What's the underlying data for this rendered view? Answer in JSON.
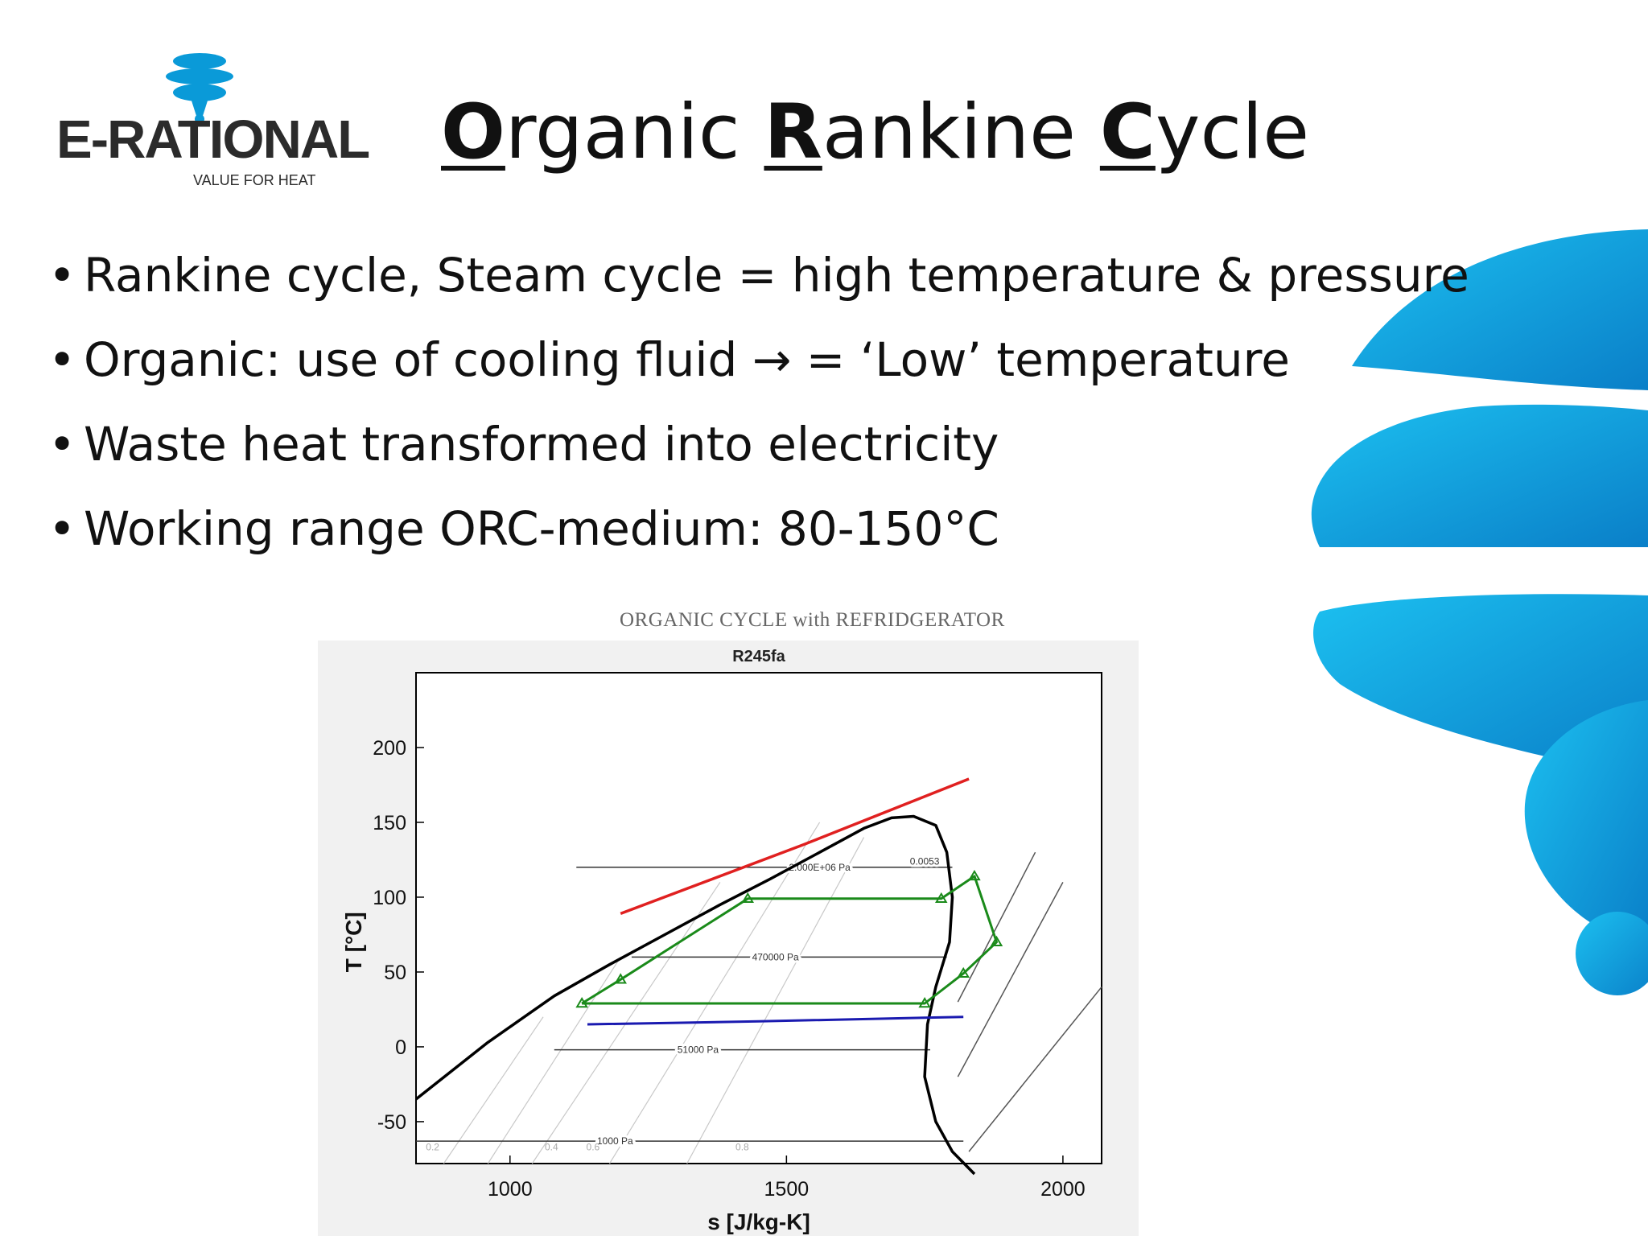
{
  "brand": {
    "name": "E-RATIONAL",
    "tagline": "VALUE FOR HEAT",
    "colors": {
      "primary": "#0a9ad8",
      "dark": "#2b2b2b"
    }
  },
  "title": {
    "word1_cap": "O",
    "word1_rest": "rganic ",
    "word2_cap": "R",
    "word2_rest": "ankine ",
    "word3_cap": "C",
    "word3_rest": "ycle"
  },
  "bullets": [
    {
      "text": "Rankine cycle, Steam cycle = high temperature & pressure"
    },
    {
      "text": "Organic: use of cooling fluid → = ‘Low’ temperature"
    },
    {
      "text": "Waste heat transformed into electricity"
    },
    {
      "text": "Working range ORC-medium: 80-150°C"
    }
  ],
  "figure_caption": "ORGANIC CYCLE  with  REFRIDGERATOR",
  "chart_data": {
    "type": "line",
    "title": "R245fa",
    "xlabel": "s [J/kg-K]",
    "ylabel": "T [°C]",
    "xlim": [
      830,
      2070
    ],
    "ylim": [
      -78,
      250
    ],
    "xticks": [
      1000,
      1500,
      2000
    ],
    "yticks": [
      -50,
      0,
      50,
      100,
      150,
      200
    ],
    "grid": false,
    "isobar_labels": [
      {
        "text": "2.000E+06 Pa",
        "x": 1560,
        "y": 120
      },
      {
        "text": "0.0053",
        "x": 1750,
        "y": 124
      },
      {
        "text": "470000 Pa",
        "x": 1480,
        "y": 60
      },
      {
        "text": "51000 Pa",
        "x": 1340,
        "y": -2
      },
      {
        "text": "1000 Pa",
        "x": 1190,
        "y": -63
      }
    ],
    "quality_labels": [
      {
        "text": "0.2",
        "x": 860,
        "y": -67
      },
      {
        "text": "0.4",
        "x": 1075,
        "y": -67
      },
      {
        "text": "0.6",
        "x": 1150,
        "y": -67
      },
      {
        "text": "0.8",
        "x": 1420,
        "y": -67
      }
    ],
    "series": [
      {
        "type": "dome",
        "color": "#000000",
        "x": [
          830,
          960,
          1080,
          1180,
          1280,
          1380,
          1470,
          1560,
          1640,
          1690,
          1730,
          1770,
          1790,
          1800,
          1795,
          1770,
          1755,
          1750,
          1770,
          1800,
          1840
        ],
        "y": [
          -35,
          3,
          34,
          55,
          75,
          95,
          112,
          130,
          146,
          153,
          154,
          148,
          130,
          100,
          70,
          40,
          15,
          -20,
          -50,
          -70,
          -85
        ]
      },
      {
        "type": "heat_source",
        "color": "#e02020",
        "x": [
          1200,
          1530,
          1830
        ],
        "y": [
          89,
          135,
          179
        ]
      },
      {
        "type": "cooling",
        "color": "#1a1ab0",
        "x": [
          1140,
          1450,
          1820
        ],
        "y": [
          15,
          17,
          20
        ]
      },
      {
        "type": "cycle",
        "color": "#1a8a1a",
        "x": [
          1130,
          1200,
          1430,
          1780,
          1840,
          1880,
          1820,
          1750,
          1130
        ],
        "y": [
          29,
          45,
          99,
          99,
          114,
          70,
          49,
          29,
          29
        ],
        "markers": [
          [
            1130,
            29
          ],
          [
            1200,
            45
          ],
          [
            1430,
            99
          ],
          [
            1780,
            99
          ],
          [
            1840,
            114
          ],
          [
            1880,
            70
          ],
          [
            1820,
            49
          ],
          [
            1750,
            29
          ]
        ]
      }
    ]
  }
}
